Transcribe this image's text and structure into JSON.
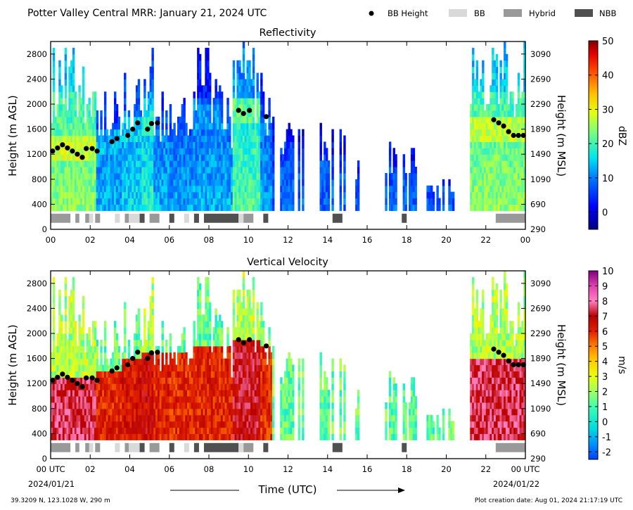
{
  "figure": {
    "title": "Potter Valley Central MRR:  January 21, 2024 UTC",
    "legend": [
      {
        "label": "BB Height",
        "kind": "marker",
        "color": "#000000"
      },
      {
        "label": "BB",
        "kind": "swatch",
        "color": "#d9d9d9"
      },
      {
        "label": "Hybrid",
        "kind": "swatch",
        "color": "#999999"
      },
      {
        "label": "NBB",
        "kind": "swatch",
        "color": "#505050"
      }
    ],
    "xlabel": "Time (UTC)",
    "start_date": "2024/01/21",
    "end_date": "2024/01/22",
    "location": "39.3209 N, 123.1028 W, 290 m",
    "created": "Plot creation date: Aug 01, 2024 21:17:19 UTC"
  },
  "chart_data": [
    {
      "type": "heatmap",
      "title": "Reflectivity",
      "ylabel": "Height (m AGL)",
      "ylabel_right": "Height (m MSL)",
      "colorbar_label": "dBZ",
      "colorbar_ticks": [
        "50",
        "40",
        "30",
        "20",
        "10",
        "0"
      ],
      "colorbar_range": [
        -5,
        50
      ],
      "xticks": [
        "00",
        "02",
        "04",
        "06",
        "08",
        "10",
        "12",
        "14",
        "16",
        "18",
        "20",
        "22",
        "00"
      ],
      "yticks_left": [
        "0",
        "400",
        "800",
        "1200",
        "1600",
        "2000",
        "2400",
        "2800"
      ],
      "yticks_right": [
        "290",
        "690",
        "1090",
        "1490",
        "1890",
        "2290",
        "2690",
        "3090"
      ],
      "xlim_hours": [
        0,
        24
      ],
      "ylim_m_agl": [
        0,
        3000
      ]
    },
    {
      "type": "heatmap",
      "title": "Vertical Velocity",
      "ylabel": "Height (m AGL)",
      "ylabel_right": "Height (m MSL)",
      "colorbar_label": "m/s",
      "colorbar_ticks": [
        "10",
        "9",
        "8",
        "7",
        "6",
        "5",
        "4",
        "3",
        "2",
        "1",
        "0",
        "-1",
        "-2"
      ],
      "colorbar_range": [
        -2.5,
        10
      ],
      "xticks": [
        "00 UTC",
        "02",
        "04",
        "06",
        "08",
        "10",
        "12",
        "14",
        "16",
        "18",
        "20",
        "22",
        "00 UTC"
      ],
      "yticks_left": [
        "0",
        "400",
        "800",
        "1200",
        "1600",
        "2000",
        "2400",
        "2800"
      ],
      "yticks_right": [
        "290",
        "690",
        "1090",
        "1490",
        "1890",
        "2290",
        "2690",
        "3090"
      ],
      "xlim_hours": [
        0,
        24
      ],
      "ylim_m_agl": [
        0,
        3000
      ]
    }
  ],
  "bb_height": [
    [
      0.1,
      1250
    ],
    [
      0.35,
      1300
    ],
    [
      0.6,
      1350
    ],
    [
      0.85,
      1300
    ],
    [
      1.1,
      1250
    ],
    [
      1.35,
      1200
    ],
    [
      1.6,
      1150
    ],
    [
      1.8,
      1290
    ],
    [
      2.1,
      1290
    ],
    [
      2.35,
      1250
    ],
    [
      3.1,
      1400
    ],
    [
      3.35,
      1450
    ],
    [
      3.9,
      1500
    ],
    [
      4.15,
      1600
    ],
    [
      4.4,
      1700
    ],
    [
      4.9,
      1600
    ],
    [
      5.1,
      1690
    ],
    [
      5.4,
      1700
    ],
    [
      9.5,
      1900
    ],
    [
      9.75,
      1850
    ],
    [
      10.05,
      1900
    ],
    [
      10.9,
      1800
    ],
    [
      22.4,
      1750
    ],
    [
      22.65,
      1700
    ],
    [
      22.9,
      1650
    ],
    [
      23.15,
      1560
    ],
    [
      23.4,
      1500
    ],
    [
      23.65,
      1500
    ],
    [
      23.9,
      1500
    ]
  ],
  "classification": [
    {
      "start": 0.0,
      "end": 1.0,
      "class": "Hybrid"
    },
    {
      "start": 1.25,
      "end": 1.45,
      "class": "Hybrid"
    },
    {
      "start": 1.75,
      "end": 1.95,
      "class": "Hybrid"
    },
    {
      "start": 1.95,
      "end": 2.15,
      "class": "BB"
    },
    {
      "start": 2.25,
      "end": 2.5,
      "class": "Hybrid"
    },
    {
      "start": 3.25,
      "end": 3.5,
      "class": "BB"
    },
    {
      "start": 3.75,
      "end": 3.95,
      "class": "Hybrid"
    },
    {
      "start": 3.95,
      "end": 4.5,
      "class": "BB"
    },
    {
      "start": 4.5,
      "end": 4.75,
      "class": "NBB"
    },
    {
      "start": 5.0,
      "end": 5.5,
      "class": "Hybrid"
    },
    {
      "start": 6.0,
      "end": 6.25,
      "class": "NBB"
    },
    {
      "start": 6.75,
      "end": 7.0,
      "class": "BB"
    },
    {
      "start": 7.25,
      "end": 7.5,
      "class": "NBB"
    },
    {
      "start": 7.75,
      "end": 9.5,
      "class": "NBB"
    },
    {
      "start": 9.5,
      "end": 9.75,
      "class": "BB"
    },
    {
      "start": 9.75,
      "end": 10.25,
      "class": "Hybrid"
    },
    {
      "start": 10.75,
      "end": 11.0,
      "class": "NBB"
    },
    {
      "start": 14.25,
      "end": 14.75,
      "class": "NBB"
    },
    {
      "start": 17.75,
      "end": 18.0,
      "class": "NBB"
    },
    {
      "start": 22.5,
      "end": 24.0,
      "class": "Hybrid"
    }
  ],
  "precip_periods": [
    {
      "start": 0.0,
      "end": 2.3,
      "top": 3000,
      "intensity": 0.85,
      "bb": 1280
    },
    {
      "start": 2.3,
      "end": 3.6,
      "top": 2200,
      "intensity": 0.35,
      "bb": 1380
    },
    {
      "start": 3.6,
      "end": 4.6,
      "top": 2550,
      "intensity": 0.45,
      "bb": 1600
    },
    {
      "start": 4.6,
      "end": 5.2,
      "top": 3000,
      "intensity": 0.55,
      "bb": 1650
    },
    {
      "start": 5.2,
      "end": 6.0,
      "top": 2200,
      "intensity": 0.35,
      "bb": 1650
    },
    {
      "start": 6.0,
      "end": 7.2,
      "top": 2100,
      "intensity": 0.3,
      "bb": 1700
    },
    {
      "start": 7.2,
      "end": 8.6,
      "top": 2900,
      "intensity": 0.35,
      "bb": 1750
    },
    {
      "start": 8.6,
      "end": 9.2,
      "top": 2300,
      "intensity": 0.35,
      "bb": 1800
    },
    {
      "start": 9.2,
      "end": 10.6,
      "top": 2950,
      "intensity": 0.7,
      "bb": 1880
    },
    {
      "start": 10.6,
      "end": 11.2,
      "top": 2500,
      "intensity": 0.3,
      "bb": 1800
    },
    {
      "start": 11.2,
      "end": 12.9,
      "top": 1950,
      "intensity": 0.15,
      "bb": 0
    },
    {
      "start": 13.6,
      "end": 15.0,
      "top": 1650,
      "intensity": 0.15,
      "bb": 0
    },
    {
      "start": 15.3,
      "end": 15.6,
      "top": 1200,
      "intensity": 0.1,
      "bb": 0
    },
    {
      "start": 16.8,
      "end": 18.6,
      "top": 1400,
      "intensity": 0.15,
      "bb": 0
    },
    {
      "start": 19.0,
      "end": 20.4,
      "top": 900,
      "intensity": 0.1,
      "bb": 0
    },
    {
      "start": 21.2,
      "end": 24.0,
      "top": 3000,
      "intensity": 0.85,
      "bb": 1550
    }
  ]
}
